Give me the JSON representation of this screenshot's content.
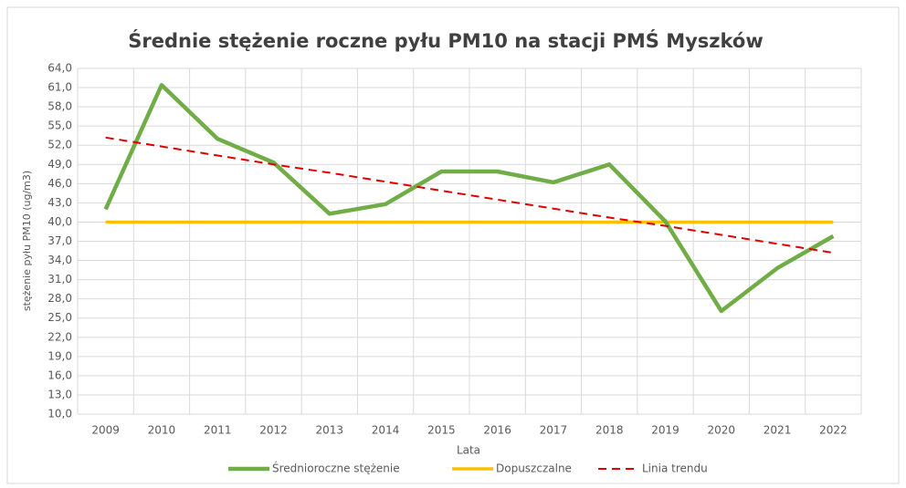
{
  "chart_data": {
    "type": "line",
    "title": "Średnie stężenie roczne pyłu PM10 na stacji PMŚ Myszków",
    "x_label": "Lata",
    "y_label": "stężenie pyłu PM10 (ug/m3)",
    "categories": [
      "2009",
      "2010",
      "2011",
      "2012",
      "2013",
      "2014",
      "2015",
      "2016",
      "2017",
      "2018",
      "2019",
      "2020",
      "2021",
      "2022"
    ],
    "series": [
      {
        "name": "Dopuszczalne",
        "color": "#ffc000",
        "style": "solid",
        "width": 3.5,
        "values": [
          40,
          40,
          40,
          40,
          40,
          40,
          40,
          40,
          40,
          40,
          40,
          40,
          40,
          40
        ]
      },
      {
        "name": "Średnioroczne stężenie",
        "color": "#70ad47",
        "style": "solid",
        "width": 4.5,
        "values": [
          42.0,
          61.4,
          53.0,
          49.3,
          41.3,
          42.8,
          47.9,
          47.9,
          46.2,
          49.0,
          40.1,
          26.1,
          32.8,
          37.8
        ]
      },
      {
        "name": "Linia trendu",
        "color": "#e00000",
        "style": "dashed",
        "width": 2,
        "values": [
          53.2,
          51.8,
          50.4,
          49.0,
          47.7,
          46.3,
          44.9,
          43.5,
          42.1,
          40.7,
          39.4,
          38.0,
          36.6,
          35.2
        ]
      }
    ],
    "legend_order": [
      1,
      0,
      2
    ],
    "legend": "bottom",
    "grid": true,
    "ylim": [
      10,
      64
    ],
    "yticks": [
      {
        "value": 10,
        "label": "10,0"
      },
      {
        "value": 13,
        "label": "13,0"
      },
      {
        "value": 16,
        "label": "16,0"
      },
      {
        "value": 19,
        "label": "19,0"
      },
      {
        "value": 22,
        "label": "22,0"
      },
      {
        "value": 25,
        "label": "25,0"
      },
      {
        "value": 28,
        "label": "28,0"
      },
      {
        "value": 31,
        "label": "31,0"
      },
      {
        "value": 34,
        "label": "34,0"
      },
      {
        "value": 37,
        "label": "37,0"
      },
      {
        "value": 40,
        "label": "40,0"
      },
      {
        "value": 43,
        "label": "43,0"
      },
      {
        "value": 46,
        "label": "46,0"
      },
      {
        "value": 49,
        "label": "49,0"
      },
      {
        "value": 52,
        "label": "52,0"
      },
      {
        "value": 55,
        "label": "55,0"
      },
      {
        "value": 58,
        "label": "58,0"
      },
      {
        "value": 61,
        "label": "61,0"
      },
      {
        "value": 64,
        "label": "64,0"
      }
    ]
  }
}
